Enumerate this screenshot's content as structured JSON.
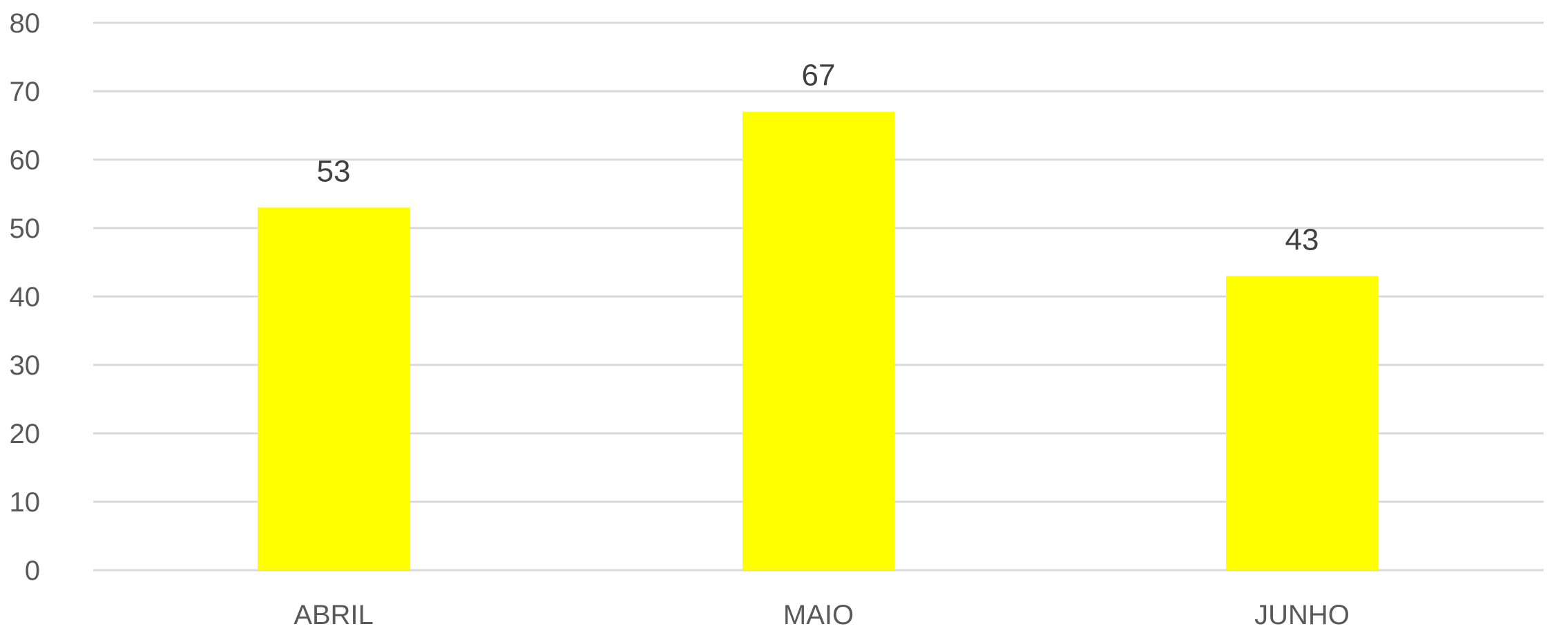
{
  "chart_data": {
    "type": "bar",
    "categories": [
      "ABRIL",
      "MAIO",
      "JUNHO"
    ],
    "values": [
      53,
      67,
      43
    ],
    "data_labels": [
      "53",
      "67",
      "43"
    ],
    "title": "",
    "xlabel": "",
    "ylabel": "",
    "ylim": [
      0,
      80
    ],
    "yticks": [
      "0",
      "10",
      "20",
      "30",
      "40",
      "50",
      "60",
      "70",
      "80"
    ],
    "grid": true,
    "legend": "none",
    "bar_color": "#ffff00",
    "gridline_color": "#d9d9d9",
    "text_color": "#595959"
  }
}
